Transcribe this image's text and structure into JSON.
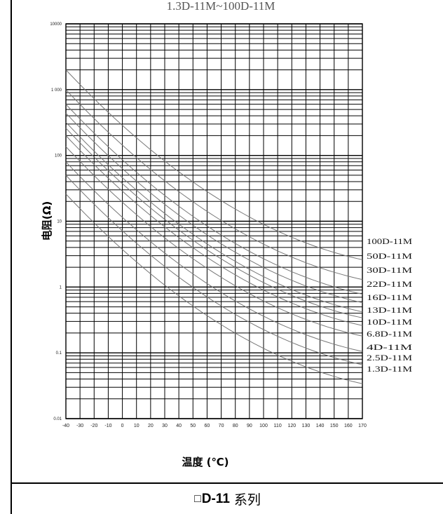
{
  "chart_data": {
    "type": "line",
    "title": "1.3D-11M~100D-11M",
    "xlabel": "温度 (℃)",
    "ylabel": "电阻(Ω)",
    "y_scale": "log",
    "ylim": [
      0.01,
      10000
    ],
    "xlim": [
      -40,
      170
    ],
    "x_ticks": [
      "-40",
      "-30",
      "-20",
      "-10",
      "0",
      "10",
      "20",
      "30",
      "40",
      "50",
      "60",
      "70",
      "80",
      "90",
      "100",
      "110",
      "120",
      "130",
      "140",
      "150",
      "160",
      "170"
    ],
    "y_ticks": [
      "0.01",
      "0.1",
      "1",
      "10",
      "100",
      "1 000",
      "10000"
    ],
    "grid": true,
    "legend": "right",
    "series": [
      {
        "name": "100D-11M",
        "x": [
          -40,
          25,
          170
        ],
        "y": [
          2000,
          100,
          2.6
        ]
      },
      {
        "name": "50D-11M",
        "x": [
          -40,
          25,
          170
        ],
        "y": [
          1000,
          50,
          1.3
        ]
      },
      {
        "name": "30D-11M",
        "x": [
          -40,
          25,
          170
        ],
        "y": [
          600,
          30,
          0.78
        ]
      },
      {
        "name": "22D-11M",
        "x": [
          -40,
          25,
          170
        ],
        "y": [
          440,
          22,
          0.58
        ]
      },
      {
        "name": "16D-11M",
        "x": [
          -40,
          25,
          170
        ],
        "y": [
          320,
          16,
          0.42
        ]
      },
      {
        "name": "13D-11M",
        "x": [
          -40,
          25,
          170
        ],
        "y": [
          260,
          13,
          0.34
        ]
      },
      {
        "name": "10D-11M",
        "x": [
          -40,
          25,
          170
        ],
        "y": [
          200,
          10,
          0.26
        ]
      },
      {
        "name": "6.8D-11M",
        "x": [
          -40,
          25,
          170
        ],
        "y": [
          136,
          6.8,
          0.18
        ]
      },
      {
        "name": "4D-11M",
        "x": [
          -40,
          25,
          170
        ],
        "y": [
          80,
          4,
          0.105
        ]
      },
      {
        "name": "2.5D-11M",
        "x": [
          -40,
          25,
          170
        ],
        "y": [
          50,
          2.5,
          0.066
        ]
      },
      {
        "name": "1.3D-11M",
        "x": [
          -40,
          25,
          170
        ],
        "y": [
          26,
          1.3,
          0.034
        ]
      }
    ]
  },
  "series_labels": [
    "100D-11M",
    "50D-11M",
    "30D-11M",
    "22D-11M",
    "16D-11M",
    "13D-11M",
    "10D-11M",
    "6.8D-11M",
    "4D-11M",
    "2.5D-11M",
    "1.3D-11M"
  ],
  "footer": {
    "box": "□",
    "code": "D-11",
    "suffix": "系列"
  }
}
